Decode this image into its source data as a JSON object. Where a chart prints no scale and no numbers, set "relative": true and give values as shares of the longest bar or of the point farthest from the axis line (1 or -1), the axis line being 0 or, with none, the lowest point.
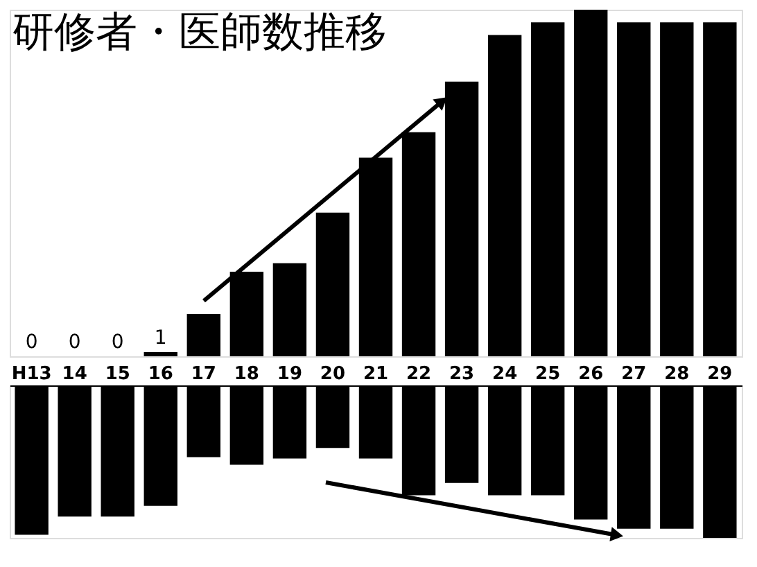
{
  "chart_data": [
    {
      "type": "bar",
      "title": "研修者・医師数推移",
      "tick_labels": "x",
      "categories": [
        "H13",
        "14",
        "15",
        "16",
        "17",
        "18",
        "19",
        "20",
        "21",
        "22",
        "23",
        "24",
        "25",
        "26",
        "27",
        "28",
        "29"
      ],
      "series": [
        {
          "color": "#000000",
          "values": [
            0,
            0,
            0,
            1,
            10,
            20,
            22,
            34,
            47,
            53,
            65,
            76,
            79,
            82,
            79,
            79,
            79
          ],
          "value_labels": [
            "0",
            "0",
            "0",
            "1",
            null,
            null,
            null,
            null,
            null,
            null,
            null,
            null,
            null,
            null,
            null,
            null,
            null
          ]
        }
      ]
    },
    {
      "type": "bar",
      "relative": true,
      "tick_labels": false,
      "categories": [
        null,
        null,
        null,
        null,
        null,
        null,
        null,
        null,
        null,
        null,
        null,
        null,
        null,
        null,
        null,
        null,
        null
      ],
      "series": [
        {
          "color": "#000000",
          "values": [
            -0.98,
            -0.86,
            -0.86,
            -0.79,
            -0.47,
            -0.52,
            -0.48,
            -0.41,
            -0.48,
            -0.72,
            -0.64,
            -0.72,
            -0.72,
            -0.88,
            -0.94,
            -0.94,
            -1
          ]
        }
      ]
    }
  ]
}
